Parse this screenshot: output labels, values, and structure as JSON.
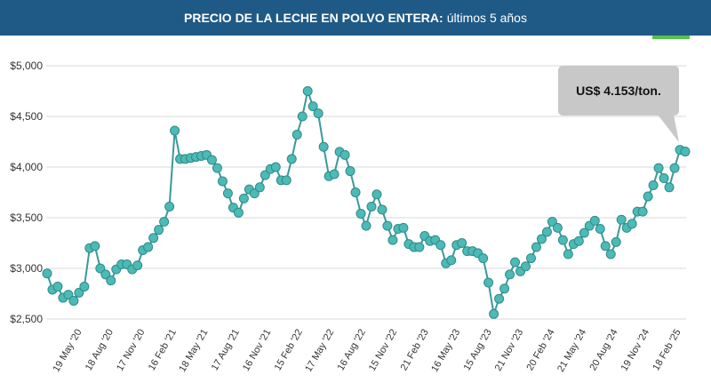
{
  "header": {
    "title_bold": "PRECIO DE LA LECHE EN POLVO ENTERA:",
    "title_rest": "últimos 5 años"
  },
  "colors": {
    "header_bg": "#1f5a86",
    "line": "#3a9a98",
    "marker": "#4cbab6",
    "grid": "#d9d9d9",
    "callout_bg": "#c8c8c8",
    "accent": "#59c04c"
  },
  "chart_data": {
    "type": "line",
    "title": "PRECIO DE LA LECHE EN POLVO ENTERA: últimos 5 años",
    "xlabel": "",
    "ylabel": "",
    "ylim": [
      2500,
      5000
    ],
    "y_ticks": [
      "$2,500",
      "$3,000",
      "$3,500",
      "$4,000",
      "$4,500",
      "$5,000"
    ],
    "x_tick_labels": [
      "19 May '20",
      "18 Aug '20",
      "17 Nov '20",
      "16 Feb '21",
      "18 May '21",
      "17 Aug '21",
      "16 Nov '21",
      "15 Feb '22",
      "17 May '22",
      "16 Aug '22",
      "15 Nov '22",
      "21 Feb '23",
      "16 May '23",
      "15 Aug '23",
      "21 Nov '23",
      "20 Feb '24",
      "21 May '24",
      "20 Aug '24",
      "19 Nov '24",
      "18 Feb '25"
    ],
    "grid": "horizontal",
    "legend": "none",
    "annotation": "US$ 4.153/ton.",
    "series": [
      {
        "values": [
          2950,
          2790,
          2820,
          2710,
          2740,
          2680,
          2760,
          2820,
          3200,
          3220,
          3000,
          2940,
          2880,
          2990,
          3040,
          3040,
          2990,
          3030,
          3180,
          3210,
          3300,
          3380,
          3460,
          3610,
          4360,
          4080,
          4080,
          4090,
          4100,
          4110,
          4120,
          4070,
          3990,
          3860,
          3740,
          3600,
          3550,
          3690,
          3780,
          3740,
          3800,
          3920,
          3980,
          4000,
          3870,
          3870,
          4080,
          4320,
          4500,
          4750,
          4600,
          4530,
          4200,
          3910,
          3930,
          4150,
          4120,
          3960,
          3750,
          3540,
          3420,
          3610,
          3730,
          3580,
          3420,
          3280,
          3390,
          3400,
          3240,
          3210,
          3210,
          3320,
          3270,
          3280,
          3230,
          3050,
          3080,
          3230,
          3250,
          3170,
          3170,
          3150,
          3100,
          2860,
          2550,
          2700,
          2800,
          2940,
          3060,
          2970,
          3020,
          3100,
          3210,
          3290,
          3360,
          3460,
          3400,
          3280,
          3140,
          3240,
          3270,
          3350,
          3420,
          3470,
          3390,
          3220,
          3140,
          3260,
          3480,
          3400,
          3440,
          3560,
          3560,
          3710,
          3820,
          3990,
          3890,
          3800,
          3990,
          4170,
          4153
        ]
      }
    ]
  }
}
